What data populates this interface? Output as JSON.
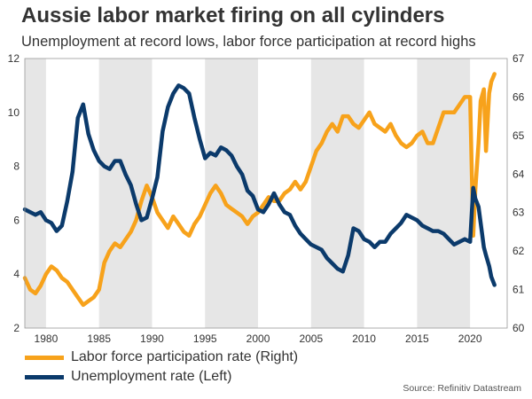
{
  "title": "Aussie labor market firing on all cylinders",
  "subtitle": "Unemployment at record lows, labor force participation at record highs",
  "source": "Source: Refinitiv Datastream",
  "chart_data": {
    "type": "line",
    "x_range": [
      1978,
      2023.5
    ],
    "shaded_bands": [
      [
        1978,
        1980
      ],
      [
        1985,
        1990
      ],
      [
        1995,
        2000
      ],
      [
        2005,
        2010
      ],
      [
        2015,
        2020
      ]
    ],
    "left_axis": {
      "ylim": [
        2,
        12
      ],
      "ticks": [
        2,
        4,
        6,
        8,
        10,
        12
      ]
    },
    "right_axis": {
      "ylim": [
        60,
        67
      ],
      "ticks": [
        60,
        61,
        62,
        63,
        64,
        65,
        66,
        67
      ]
    },
    "x_ticks": [
      1980,
      1985,
      1990,
      1995,
      2000,
      2005,
      2010,
      2015,
      2020
    ],
    "colors": {
      "participation": "#f7a21b",
      "unemployment": "#0b3a6b",
      "band": "#e6e6e6"
    },
    "series": [
      {
        "key": "participation",
        "name": "Labor force participation rate (Right)",
        "axis": "right",
        "x": [
          1978,
          1978.5,
          1979,
          1979.5,
          1980,
          1980.5,
          1981,
          1981.5,
          1982,
          1982.5,
          1983,
          1983.5,
          1984,
          1984.5,
          1985,
          1985.5,
          1986,
          1986.5,
          1987,
          1987.5,
          1988,
          1988.5,
          1989,
          1989.5,
          1990,
          1990.5,
          1991,
          1991.5,
          1992,
          1992.5,
          1993,
          1993.5,
          1994,
          1994.5,
          1995,
          1995.5,
          1996,
          1996.5,
          1997,
          1997.5,
          1998,
          1998.5,
          1999,
          1999.5,
          2000,
          2000.5,
          2001,
          2001.5,
          2002,
          2002.5,
          2003,
          2003.5,
          2004,
          2004.5,
          2005,
          2005.5,
          2006,
          2006.5,
          2007,
          2007.5,
          2008,
          2008.5,
          2009,
          2009.5,
          2010,
          2010.5,
          2011,
          2011.5,
          2012,
          2012.5,
          2013,
          2013.5,
          2014,
          2014.5,
          2015,
          2015.5,
          2016,
          2016.5,
          2017,
          2017.5,
          2018,
          2018.5,
          2019,
          2019.5,
          2020,
          2020.3,
          2020.5,
          2020.8,
          2021,
          2021.3,
          2021.5,
          2021.8,
          2022,
          2022.3
        ],
        "values": [
          61.3,
          61.0,
          60.9,
          61.1,
          61.4,
          61.6,
          61.5,
          61.3,
          61.2,
          61.0,
          60.8,
          60.6,
          60.7,
          60.8,
          61.0,
          61.7,
          62.0,
          62.2,
          62.1,
          62.3,
          62.5,
          62.8,
          63.3,
          63.7,
          63.4,
          63.0,
          62.8,
          62.6,
          62.9,
          62.7,
          62.5,
          62.4,
          62.7,
          62.9,
          63.2,
          63.5,
          63.7,
          63.5,
          63.2,
          63.1,
          63.0,
          62.9,
          62.7,
          62.9,
          63.0,
          63.2,
          63.4,
          63.3,
          63.3,
          63.5,
          63.6,
          63.8,
          63.6,
          63.8,
          64.2,
          64.6,
          64.8,
          65.1,
          65.3,
          65.1,
          65.5,
          65.5,
          65.3,
          65.2,
          65.4,
          65.6,
          65.3,
          65.2,
          65.1,
          65.3,
          65.0,
          64.8,
          64.7,
          64.8,
          65.0,
          65.1,
          64.8,
          64.8,
          65.2,
          65.6,
          65.6,
          65.6,
          65.8,
          66.0,
          66.0,
          62.4,
          63.6,
          64.8,
          65.9,
          66.2,
          64.6,
          66.1,
          66.4,
          66.6
        ]
      },
      {
        "key": "unemployment",
        "name": "Unemployment rate (Left)",
        "axis": "left",
        "x": [
          1978,
          1978.5,
          1979,
          1979.5,
          1980,
          1980.5,
          1981,
          1981.5,
          1982,
          1982.5,
          1983,
          1983.5,
          1984,
          1984.5,
          1985,
          1985.5,
          1986,
          1986.5,
          1987,
          1987.5,
          1988,
          1988.5,
          1989,
          1989.5,
          1990,
          1990.5,
          1991,
          1991.5,
          1992,
          1992.5,
          1993,
          1993.5,
          1994,
          1994.5,
          1995,
          1995.5,
          1996,
          1996.5,
          1997,
          1997.5,
          1998,
          1998.5,
          1999,
          1999.5,
          2000,
          2000.5,
          2001,
          2001.5,
          2002,
          2002.5,
          2003,
          2003.5,
          2004,
          2004.5,
          2005,
          2005.5,
          2006,
          2006.5,
          2007,
          2007.5,
          2008,
          2008.5,
          2009,
          2009.5,
          2010,
          2010.5,
          2011,
          2011.5,
          2012,
          2012.5,
          2013,
          2013.5,
          2014,
          2014.5,
          2015,
          2015.5,
          2016,
          2016.5,
          2017,
          2017.5,
          2018,
          2018.5,
          2019,
          2019.5,
          2020,
          2020.3,
          2020.5,
          2020.8,
          2021,
          2021.3,
          2021.5,
          2021.8,
          2022,
          2022.3
        ],
        "values": [
          6.4,
          6.3,
          6.2,
          6.3,
          6.0,
          5.9,
          5.6,
          5.8,
          6.7,
          7.8,
          9.8,
          10.3,
          9.2,
          8.6,
          8.2,
          8.0,
          7.9,
          8.2,
          8.2,
          7.7,
          7.3,
          6.6,
          6.0,
          6.1,
          6.8,
          7.6,
          9.3,
          10.2,
          10.7,
          11.0,
          10.9,
          10.7,
          9.8,
          9.0,
          8.3,
          8.5,
          8.4,
          8.7,
          8.6,
          8.4,
          8.0,
          7.7,
          7.1,
          6.9,
          6.4,
          6.3,
          6.6,
          7.0,
          6.6,
          6.3,
          6.2,
          5.8,
          5.5,
          5.3,
          5.1,
          5.0,
          4.9,
          4.6,
          4.4,
          4.2,
          4.1,
          4.7,
          5.7,
          5.6,
          5.3,
          5.2,
          5.0,
          5.2,
          5.2,
          5.5,
          5.7,
          5.9,
          6.2,
          6.1,
          6.0,
          5.8,
          5.7,
          5.6,
          5.6,
          5.5,
          5.3,
          5.1,
          5.2,
          5.3,
          5.2,
          7.2,
          6.8,
          6.5,
          5.9,
          5.0,
          4.7,
          4.3,
          3.9,
          3.6
        ]
      }
    ]
  }
}
